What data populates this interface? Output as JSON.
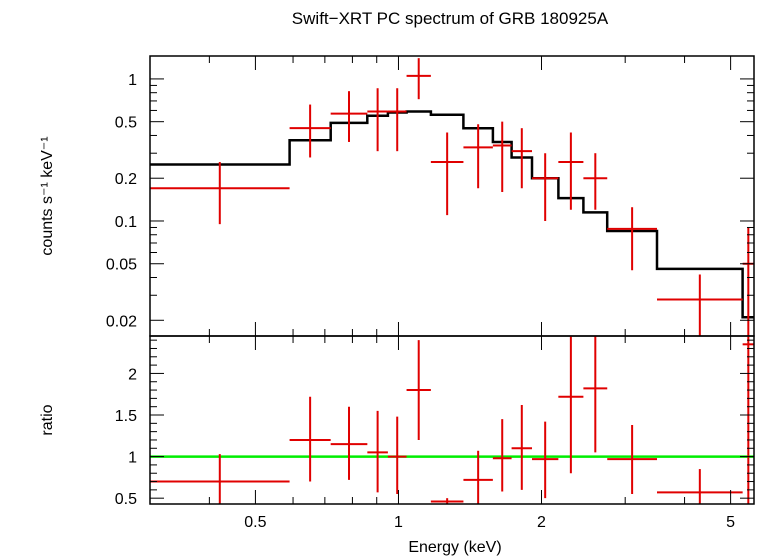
{
  "chart_data": [
    {
      "type": "scatter",
      "panel": "spectrum",
      "title": "Swift−XRT PC spectrum of GRB 180925A",
      "xlabel": "",
      "ylabel": "counts s⁻¹ keV⁻¹",
      "xscale": "log",
      "yscale": "log",
      "xlim": [
        0.3,
        5.6
      ],
      "ylim": [
        0.0155,
        1.45
      ],
      "yticks": [
        {
          "value": 1,
          "label": "1"
        },
        {
          "value": 0.5,
          "label": "0.5"
        },
        {
          "value": 0.2,
          "label": "0.2"
        },
        {
          "value": 0.1,
          "label": "0.1"
        },
        {
          "value": 0.05,
          "label": "0.05"
        },
        {
          "value": 0.02,
          "label": "0.02"
        }
      ],
      "data_color": "#e00000",
      "model_color": "#000000",
      "data": [
        {
          "xlo": 0.3,
          "xhi": 0.59,
          "y": 0.17,
          "ylo": 0.095,
          "yhi": 0.26
        },
        {
          "xlo": 0.59,
          "xhi": 0.72,
          "y": 0.45,
          "ylo": 0.28,
          "yhi": 0.66
        },
        {
          "xlo": 0.72,
          "xhi": 0.86,
          "y": 0.57,
          "ylo": 0.36,
          "yhi": 0.82
        },
        {
          "xlo": 0.86,
          "xhi": 0.95,
          "y": 0.59,
          "ylo": 0.31,
          "yhi": 0.86
        },
        {
          "xlo": 0.95,
          "xhi": 1.04,
          "y": 0.59,
          "ylo": 0.31,
          "yhi": 0.86
        },
        {
          "xlo": 1.04,
          "xhi": 1.17,
          "y": 1.05,
          "ylo": 0.72,
          "yhi": 1.4
        },
        {
          "xlo": 1.17,
          "xhi": 1.37,
          "y": 0.26,
          "ylo": 0.11,
          "yhi": 0.42
        },
        {
          "xlo": 1.37,
          "xhi": 1.58,
          "y": 0.33,
          "ylo": 0.17,
          "yhi": 0.48
        },
        {
          "xlo": 1.58,
          "xhi": 1.73,
          "y": 0.34,
          "ylo": 0.16,
          "yhi": 0.5
        },
        {
          "xlo": 1.73,
          "xhi": 1.91,
          "y": 0.31,
          "ylo": 0.17,
          "yhi": 0.45
        },
        {
          "xlo": 1.91,
          "xhi": 2.17,
          "y": 0.2,
          "ylo": 0.1,
          "yhi": 0.3
        },
        {
          "xlo": 2.17,
          "xhi": 2.45,
          "y": 0.26,
          "ylo": 0.12,
          "yhi": 0.42
        },
        {
          "xlo": 2.45,
          "xhi": 2.75,
          "y": 0.2,
          "ylo": 0.12,
          "yhi": 0.3
        },
        {
          "xlo": 2.75,
          "xhi": 3.5,
          "y": 0.088,
          "ylo": 0.045,
          "yhi": 0.125
        },
        {
          "xlo": 3.5,
          "xhi": 5.3,
          "y": 0.028,
          "ylo": 0.0155,
          "yhi": 0.042
        },
        {
          "xlo": 5.3,
          "xhi": 5.6,
          "y": 0.05,
          "ylo": 0.0155,
          "yhi": 0.09
        }
      ],
      "model_steps": [
        {
          "xlo": 0.3,
          "xhi": 0.59,
          "y": 0.25
        },
        {
          "xlo": 0.59,
          "xhi": 0.72,
          "y": 0.37
        },
        {
          "xlo": 0.72,
          "xhi": 0.86,
          "y": 0.49
        },
        {
          "xlo": 0.86,
          "xhi": 0.95,
          "y": 0.55
        },
        {
          "xlo": 0.95,
          "xhi": 1.04,
          "y": 0.58
        },
        {
          "xlo": 1.04,
          "xhi": 1.17,
          "y": 0.59
        },
        {
          "xlo": 1.17,
          "xhi": 1.37,
          "y": 0.56
        },
        {
          "xlo": 1.37,
          "xhi": 1.58,
          "y": 0.45
        },
        {
          "xlo": 1.58,
          "xhi": 1.73,
          "y": 0.36
        },
        {
          "xlo": 1.73,
          "xhi": 1.91,
          "y": 0.28
        },
        {
          "xlo": 1.91,
          "xhi": 2.17,
          "y": 0.2
        },
        {
          "xlo": 2.17,
          "xhi": 2.45,
          "y": 0.145
        },
        {
          "xlo": 2.45,
          "xhi": 2.75,
          "y": 0.115
        },
        {
          "xlo": 2.75,
          "xhi": 3.5,
          "y": 0.085
        },
        {
          "xlo": 3.5,
          "xhi": 5.3,
          "y": 0.046
        },
        {
          "xlo": 5.3,
          "xhi": 5.6,
          "y": 0.021
        }
      ]
    },
    {
      "type": "scatter",
      "panel": "ratio",
      "title": "",
      "xlabel": "Energy (keV)",
      "ylabel": "ratio",
      "xscale": "log",
      "yscale": "linear",
      "xlim": [
        0.3,
        5.6
      ],
      "ylim": [
        0.43,
        2.45
      ],
      "xticks": [
        {
          "value": 0.5,
          "label": "0.5"
        },
        {
          "value": 1,
          "label": "1"
        },
        {
          "value": 2,
          "label": "2"
        },
        {
          "value": 5,
          "label": "5"
        }
      ],
      "yticks": [
        {
          "value": 0.5,
          "label": "0.5"
        },
        {
          "value": 1,
          "label": "1"
        },
        {
          "value": 1.5,
          "label": "1.5"
        },
        {
          "value": 2,
          "label": "2"
        }
      ],
      "reference_line": {
        "y": 1,
        "color": "#00ee00"
      },
      "data_color": "#e00000",
      "data": [
        {
          "xlo": 0.3,
          "xhi": 0.59,
          "y": 0.7,
          "ylo": 0.43,
          "yhi": 1.03
        },
        {
          "xlo": 0.59,
          "xhi": 0.72,
          "y": 1.2,
          "ylo": 0.7,
          "yhi": 1.72
        },
        {
          "xlo": 0.72,
          "xhi": 0.86,
          "y": 1.15,
          "ylo": 0.72,
          "yhi": 1.6
        },
        {
          "xlo": 0.86,
          "xhi": 0.95,
          "y": 1.05,
          "ylo": 0.57,
          "yhi": 1.55
        },
        {
          "xlo": 0.95,
          "xhi": 1.04,
          "y": 1.0,
          "ylo": 0.55,
          "yhi": 1.48
        },
        {
          "xlo": 1.04,
          "xhi": 1.17,
          "y": 1.8,
          "ylo": 1.2,
          "yhi": 2.4
        },
        {
          "xlo": 1.17,
          "xhi": 1.37,
          "y": 0.46,
          "ylo": 0.43,
          "yhi": 0.5
        },
        {
          "xlo": 1.37,
          "xhi": 1.58,
          "y": 0.72,
          "ylo": 0.43,
          "yhi": 1.07
        },
        {
          "xlo": 1.58,
          "xhi": 1.73,
          "y": 0.98,
          "ylo": 0.58,
          "yhi": 1.45
        },
        {
          "xlo": 1.73,
          "xhi": 1.91,
          "y": 1.1,
          "ylo": 0.6,
          "yhi": 1.62
        },
        {
          "xlo": 1.91,
          "xhi": 2.17,
          "y": 0.97,
          "ylo": 0.5,
          "yhi": 1.42
        },
        {
          "xlo": 2.17,
          "xhi": 2.45,
          "y": 1.72,
          "ylo": 0.8,
          "yhi": 2.45
        },
        {
          "xlo": 2.45,
          "xhi": 2.75,
          "y": 1.82,
          "ylo": 1.05,
          "yhi": 2.45
        },
        {
          "xlo": 2.75,
          "xhi": 3.5,
          "y": 0.97,
          "ylo": 0.55,
          "yhi": 1.38
        },
        {
          "xlo": 3.5,
          "xhi": 5.3,
          "y": 0.57,
          "ylo": 0.43,
          "yhi": 0.85
        },
        {
          "xlo": 5.3,
          "xhi": 5.6,
          "y": 2.35,
          "ylo": 0.43,
          "yhi": 2.45
        }
      ]
    }
  ]
}
